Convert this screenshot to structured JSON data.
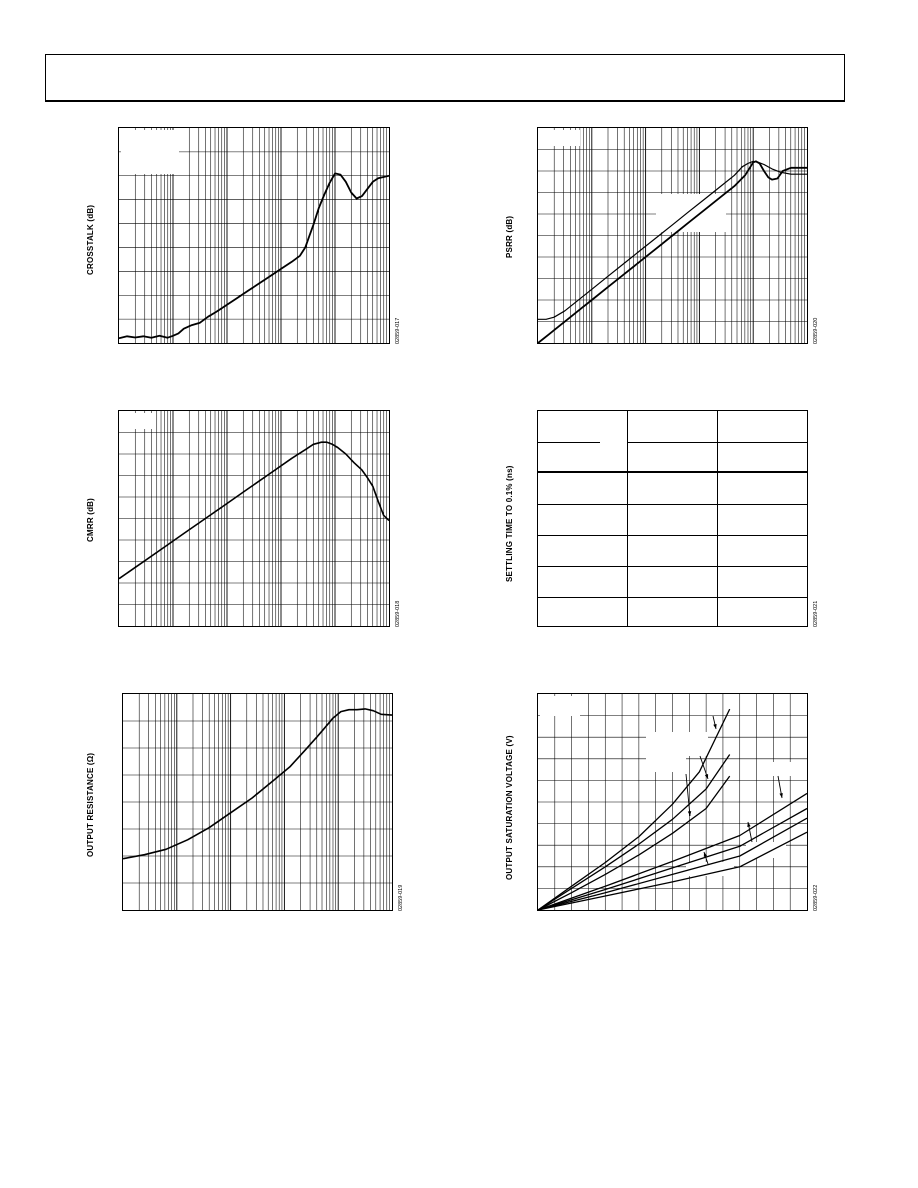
{
  "charts": [
    {
      "id": "crosstalk",
      "ylabel": "CROSSTALK (dB)",
      "fig_id": "02859-017",
      "grid": "semilog-x",
      "x_decades": 5,
      "h_divisions": 9,
      "curve_x": [
        0,
        0.15,
        0.3,
        0.45,
        0.6,
        0.75,
        0.9,
        1.0,
        1.1,
        1.2,
        1.35,
        1.5,
        1.65,
        1.8,
        2.0,
        2.2,
        2.4,
        2.6,
        2.8,
        3.0,
        3.2,
        3.35,
        3.45,
        3.52,
        3.6,
        3.7,
        3.8,
        3.9,
        4.0,
        4.1,
        4.2,
        4.3,
        4.4,
        4.5,
        4.6,
        4.7,
        4.8,
        4.9,
        5.0
      ],
      "curve_y": [
        8.8,
        8.72,
        8.77,
        8.72,
        8.78,
        8.7,
        8.78,
        8.7,
        8.6,
        8.4,
        8.25,
        8.15,
        7.9,
        7.7,
        7.4,
        7.1,
        6.8,
        6.5,
        6.2,
        5.9,
        5.6,
        5.35,
        5.0,
        4.55,
        4.05,
        3.35,
        2.8,
        2.3,
        1.9,
        1.95,
        2.25,
        2.7,
        2.95,
        2.85,
        2.55,
        2.25,
        2.1,
        2.05,
        2.0
      ]
    },
    {
      "id": "psrr",
      "ylabel": "PSRR (dB)",
      "fig_id": "02859-020",
      "grid": "semilog-x",
      "x_decades": 5,
      "h_divisions": 10,
      "curves": [
        {
          "x": [
            0,
            0.2,
            0.4,
            0.6,
            0.8,
            1.0,
            1.3,
            1.6,
            1.9,
            2.2,
            2.5,
            2.8,
            3.1,
            3.4,
            3.65,
            3.85,
            3.95,
            4.0,
            4.05,
            4.12,
            4.2,
            4.28,
            4.35,
            4.45,
            4.55,
            4.7,
            4.85,
            5.0
          ],
          "y": [
            10.0,
            9.6,
            9.2,
            8.8,
            8.4,
            8.0,
            7.4,
            6.8,
            6.2,
            5.6,
            5.0,
            4.4,
            3.8,
            3.2,
            2.7,
            2.2,
            1.8,
            1.6,
            1.55,
            1.65,
            2.0,
            2.3,
            2.4,
            2.35,
            2.0,
            1.85,
            1.85,
            1.85
          ]
        },
        {
          "x": [
            0,
            0.15,
            0.3,
            0.5,
            0.7,
            1.0,
            1.3,
            1.6,
            1.9,
            2.2,
            2.5,
            2.8,
            3.1,
            3.4,
            3.65,
            3.8,
            3.9,
            4.0,
            4.1,
            4.2,
            4.35,
            4.5,
            4.7,
            4.85,
            5.0
          ],
          "y": [
            8.9,
            8.9,
            8.8,
            8.5,
            8.1,
            7.5,
            6.9,
            6.3,
            5.7,
            5.1,
            4.5,
            3.9,
            3.3,
            2.7,
            2.2,
            1.8,
            1.65,
            1.55,
            1.6,
            1.7,
            1.9,
            2.05,
            2.15,
            2.15,
            2.15
          ]
        }
      ]
    },
    {
      "id": "cmrr",
      "ylabel": "CMRR (dB)",
      "fig_id": "02859-018",
      "grid": "semilog-x",
      "x_decades": 5,
      "h_divisions": 10,
      "curve_x": [
        0,
        0.4,
        0.8,
        1.2,
        1.6,
        2.0,
        2.4,
        2.8,
        3.2,
        3.45,
        3.6,
        3.75,
        3.85,
        3.95,
        4.05,
        4.2,
        4.35,
        4.5,
        4.6,
        4.7,
        4.8,
        4.9,
        5.0
      ],
      "curve_y": [
        7.8,
        7.1,
        6.4,
        5.7,
        5.0,
        4.3,
        3.6,
        2.9,
        2.2,
        1.8,
        1.55,
        1.45,
        1.45,
        1.55,
        1.7,
        2.0,
        2.4,
        2.75,
        3.1,
        3.5,
        4.2,
        4.85,
        5.1
      ]
    },
    {
      "id": "output-resistance",
      "ylabel": "OUTPUT RESISTANCE (Ω)",
      "fig_id": "02859-019",
      "grid": "semilog-x",
      "x_decades": 5,
      "h_divisions": 8,
      "curve_x": [
        0,
        0.4,
        0.8,
        1.2,
        1.6,
        2.0,
        2.4,
        2.8,
        3.1,
        3.4,
        3.6,
        3.75,
        3.9,
        4.05,
        4.2,
        4.35,
        4.5,
        4.65,
        4.8,
        5.0
      ],
      "curve_y": [
        6.1,
        5.95,
        5.75,
        5.4,
        4.95,
        4.4,
        3.85,
        3.2,
        2.7,
        2.05,
        1.6,
        1.25,
        0.9,
        0.65,
        0.58,
        0.58,
        0.55,
        0.62,
        0.75,
        0.78
      ]
    },
    {
      "id": "settling-time",
      "ylabel": "SETTLING TIME TO 0.1% (ns)",
      "fig_id": "02859-021",
      "grid": "table",
      "table_rows": 5,
      "table_cols": 3
    },
    {
      "id": "output-saturation",
      "ylabel": "OUTPUT SATURATION VOLTAGE (V)",
      "fig_id": "02859-022",
      "grid": "linear",
      "v_divisions": 16,
      "h_divisions": 10,
      "curves": [
        {
          "x": [
            0,
            2,
            4,
            6,
            8,
            9.6,
            11.4
          ],
          "y": [
            10,
            8.9,
            7.8,
            6.6,
            5.1,
            3.6,
            0.7
          ]
        },
        {
          "x": [
            0,
            2,
            4,
            6,
            8,
            10,
            11.4
          ],
          "y": [
            10,
            9.0,
            8.0,
            6.95,
            5.8,
            4.4,
            2.8
          ]
        },
        {
          "x": [
            0,
            2,
            4,
            6,
            8,
            10,
            11.4
          ],
          "y": [
            10,
            9.2,
            8.35,
            7.45,
            6.45,
            5.3,
            3.8
          ]
        },
        {
          "x": [
            0,
            4,
            8,
            12,
            16
          ],
          "y": [
            10,
            8.9,
            7.75,
            6.55,
            4.6
          ]
        },
        {
          "x": [
            0,
            4,
            8,
            12,
            16
          ],
          "y": [
            10,
            9.05,
            8.05,
            7.05,
            5.3
          ]
        },
        {
          "x": [
            0,
            4,
            8,
            12,
            16
          ],
          "y": [
            10,
            9.2,
            8.35,
            7.5,
            5.75
          ]
        },
        {
          "x": [
            0,
            4,
            8,
            12,
            16
          ],
          "y": [
            10,
            9.35,
            8.7,
            8.0,
            6.4
          ]
        }
      ]
    }
  ]
}
